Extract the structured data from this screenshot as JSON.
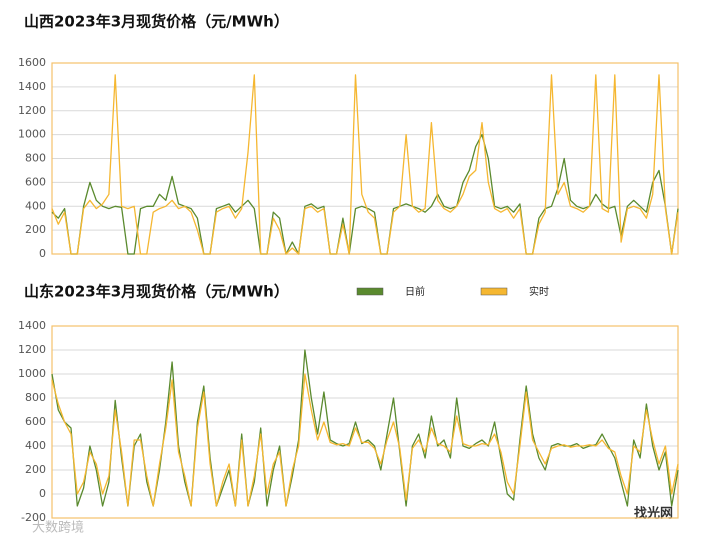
{
  "chart_data": [
    {
      "type": "line",
      "title": "山西2023年3月现货价格（元/MWh）",
      "ylim": [
        0,
        1600
      ],
      "yticks": [
        0,
        200,
        400,
        600,
        800,
        1000,
        1200,
        1400,
        1600
      ],
      "grid": true,
      "series": [
        {
          "color": "#5a8a2e",
          "values": [
            350,
            300,
            380,
            0,
            0,
            400,
            600,
            450,
            400,
            380,
            400,
            390,
            0,
            0,
            380,
            400,
            400,
            500,
            450,
            650,
            420,
            400,
            380,
            300,
            0,
            0,
            380,
            400,
            420,
            350,
            400,
            450,
            380,
            0,
            0,
            350,
            300,
            0,
            100,
            0,
            400,
            420,
            380,
            400,
            0,
            0,
            300,
            0,
            380,
            400,
            380,
            350,
            0,
            0,
            380,
            400,
            420,
            400,
            380,
            350,
            400,
            500,
            400,
            380,
            400,
            600,
            700,
            900,
            1000,
            800,
            400,
            380,
            400,
            350,
            420,
            0,
            0,
            300,
            380,
            400,
            550,
            800,
            450,
            400,
            380,
            400,
            500,
            420,
            380,
            400,
            150,
            400,
            450,
            400,
            350,
            600,
            700,
            400,
            0,
            380
          ]
        },
        {
          "color": "#f5b731",
          "values": [
            380,
            250,
            350,
            0,
            0,
            380,
            450,
            380,
            420,
            500,
            1500,
            400,
            380,
            400,
            0,
            0,
            350,
            380,
            400,
            450,
            380,
            400,
            350,
            200,
            0,
            0,
            350,
            380,
            400,
            300,
            380,
            850,
            1500,
            0,
            0,
            300,
            200,
            0,
            50,
            0,
            380,
            400,
            350,
            380,
            0,
            0,
            250,
            0,
            1500,
            500,
            350,
            300,
            0,
            0,
            350,
            400,
            1000,
            400,
            350,
            380,
            1100,
            450,
            380,
            350,
            400,
            500,
            650,
            700,
            1100,
            600,
            380,
            350,
            380,
            300,
            380,
            0,
            0,
            250,
            350,
            1500,
            500,
            600,
            400,
            380,
            350,
            400,
            1500,
            380,
            350,
            1500,
            100,
            380,
            400,
            380,
            300,
            500,
            1500,
            380,
            0,
            350
          ]
        }
      ]
    },
    {
      "type": "line",
      "title": "山东2023年3月现货价格（元/MWh）",
      "legend": "top",
      "ylim": [
        -200,
        1400
      ],
      "yticks": [
        -200,
        0,
        200,
        400,
        600,
        800,
        1000,
        1200,
        1400
      ],
      "grid": true,
      "series": [
        {
          "name": "日前",
          "color": "#5a8a2e",
          "values": [
            1000,
            700,
            600,
            550,
            -100,
            50,
            400,
            200,
            -100,
            100,
            780,
            300,
            -100,
            400,
            500,
            100,
            -100,
            200,
            600,
            1100,
            400,
            100,
            -100,
            600,
            900,
            300,
            -100,
            50,
            200,
            -100,
            500,
            -100,
            100,
            550,
            -100,
            200,
            400,
            -100,
            150,
            450,
            1200,
            800,
            500,
            850,
            450,
            420,
            400,
            420,
            600,
            420,
            450,
            400,
            200,
            500,
            800,
            350,
            -100,
            400,
            500,
            300,
            650,
            400,
            450,
            300,
            800,
            400,
            380,
            420,
            450,
            400,
            600,
            300,
            0,
            -50,
            450,
            900,
            500,
            300,
            200,
            400,
            420,
            400,
            400,
            420,
            380,
            400,
            410,
            500,
            400,
            300,
            100,
            -100,
            450,
            300,
            750,
            400,
            200,
            350,
            -100,
            200
          ]
        },
        {
          "name": "实时",
          "color": "#f5b731",
          "values": [
            950,
            750,
            600,
            500,
            0,
            100,
            350,
            250,
            0,
            150,
            700,
            350,
            -100,
            450,
            450,
            150,
            -100,
            250,
            550,
            950,
            350,
            150,
            -100,
            550,
            850,
            250,
            -100,
            100,
            250,
            -100,
            450,
            -100,
            150,
            500,
            0,
            250,
            350,
            -100,
            200,
            400,
            1000,
            700,
            450,
            600,
            430,
            410,
            420,
            400,
            550,
            430,
            430,
            380,
            250,
            450,
            600,
            380,
            -50,
            380,
            450,
            350,
            550,
            420,
            400,
            350,
            650,
            420,
            400,
            400,
            420,
            410,
            500,
            350,
            100,
            0,
            400,
            850,
            450,
            350,
            250,
            380,
            400,
            410,
            390,
            400,
            400,
            410,
            400,
            450,
            380,
            350,
            150,
            0,
            400,
            350,
            700,
            450,
            250,
            400,
            0,
            250
          ]
        }
      ]
    }
  ],
  "watermarks": [
    "大数跨境",
    "找光网"
  ]
}
